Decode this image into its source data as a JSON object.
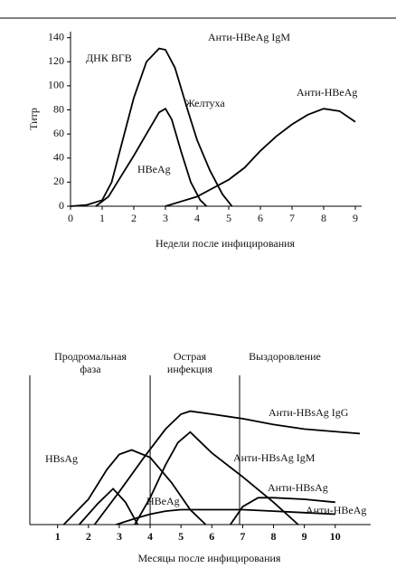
{
  "chart_data": [
    {
      "type": "line",
      "y_label": "Титр",
      "x_label": "Недели после инфицирования",
      "annotations": [
        "Анти-HBeAg IgM",
        "Желтуха"
      ],
      "xlim": [
        0,
        9.2
      ],
      "ylim": [
        0,
        145
      ],
      "xticks": [
        0,
        1,
        2,
        3,
        4,
        5,
        6,
        7,
        8,
        9
      ],
      "yticks": [
        0,
        20,
        40,
        60,
        80,
        100,
        120,
        140
      ],
      "series": [
        {
          "name": "ДНК ВГВ",
          "color": "#000000",
          "x": [
            0,
            0.5,
            1,
            1.3,
            1.7,
            2,
            2.4,
            2.8,
            3,
            3.3,
            3.7,
            4,
            4.4,
            4.8,
            5.1
          ],
          "values": [
            0,
            1,
            5,
            20,
            60,
            90,
            120,
            131,
            130,
            115,
            80,
            55,
            30,
            10,
            0
          ]
        },
        {
          "name": "HBeAg",
          "color": "#000000",
          "x": [
            0.8,
            1.2,
            1.6,
            2,
            2.4,
            2.8,
            3,
            3.2,
            3.5,
            3.8,
            4.1,
            4.3
          ],
          "values": [
            0,
            8,
            25,
            42,
            60,
            78,
            81,
            72,
            45,
            20,
            5,
            0
          ]
        },
        {
          "name": "Анти-HBeAg",
          "color": "#000000",
          "x": [
            3,
            3.5,
            4,
            4.5,
            5,
            5.5,
            6,
            6.5,
            7,
            7.5,
            8,
            8.5,
            9
          ],
          "values": [
            0,
            4,
            8,
            15,
            22,
            32,
            46,
            58,
            68,
            76,
            81,
            79,
            70
          ]
        }
      ]
    },
    {
      "type": "line",
      "x_label": "Месяцы после инфицирования",
      "phases": [
        [
          "Продромальная",
          "фаза"
        ],
        [
          "Острая",
          "инфекция"
        ],
        [
          "Выздоровление"
        ]
      ],
      "phase_bounds": [
        4,
        6.9
      ],
      "xlim": [
        0.1,
        11.15
      ],
      "ylim": [
        0,
        100
      ],
      "xticks": [
        1,
        2,
        3,
        4,
        5,
        6,
        7,
        8,
        9,
        10
      ],
      "series": [
        {
          "name": "HBsAg",
          "color": "#000000",
          "x": [
            1.2,
            2,
            2.6,
            3,
            3.4,
            4,
            4.7,
            5.3,
            5.8
          ],
          "values": [
            0,
            17,
            37,
            47,
            50,
            45,
            28,
            10,
            0
          ]
        },
        {
          "name": "HBeAg",
          "color": "#000000",
          "x": [
            1.7,
            2.3,
            2.8,
            3.2,
            3.6
          ],
          "values": [
            0,
            14,
            24,
            15,
            0
          ]
        },
        {
          "name": "Анти-HBsAg IgG",
          "color": "#000000",
          "x": [
            2.2,
            3,
            3.8,
            4.5,
            5,
            5.3,
            6,
            7,
            8,
            9,
            10.8
          ],
          "values": [
            0,
            22,
            45,
            64,
            74,
            76,
            74,
            71,
            67,
            64,
            61
          ]
        },
        {
          "name": "Анти-HBsAg IgM",
          "color": "#000000",
          "x": [
            3.5,
            4,
            4.5,
            4.9,
            5.3,
            6,
            7,
            8,
            8.8
          ],
          "values": [
            0,
            18,
            40,
            55,
            62,
            48,
            32,
            15,
            0
          ]
        },
        {
          "name": "Анти-HBsAg",
          "color": "#000000",
          "x": [
            6.6,
            7,
            7.5,
            8,
            9,
            10
          ],
          "values": [
            0,
            12,
            18,
            18,
            17,
            15
          ]
        },
        {
          "name": "Анти-HBeAg",
          "color": "#000000",
          "x": [
            2.9,
            3.5,
            4,
            4.5,
            5,
            6,
            7,
            8,
            9,
            10
          ],
          "values": [
            0,
            4,
            7,
            9,
            10,
            10,
            10,
            9,
            8,
            7
          ]
        }
      ]
    }
  ]
}
